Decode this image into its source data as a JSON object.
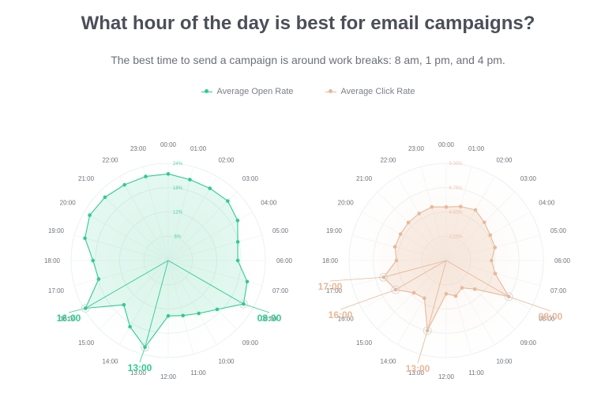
{
  "header": {
    "title": "What hour of the day is best for email campaigns?",
    "subtitle": "The best time to send a campaign is around work breaks: 8 am, 1 pm, and 4 pm."
  },
  "legend": [
    {
      "label": "Average Open Rate",
      "color": "#2ecc8f"
    },
    {
      "label": "Average Click Rate",
      "color": "#e8b898"
    }
  ],
  "chart_data": [
    {
      "type": "radar",
      "series_name": "Average Open Rate",
      "color": "#2ecc8f",
      "categories": [
        "00:00",
        "01:00",
        "02:00",
        "03:00",
        "04:00",
        "05:00",
        "06:00",
        "07:00",
        "08:00",
        "09:00",
        "10:00",
        "11:00",
        "12:00",
        "13:00",
        "14:00",
        "15:00",
        "16:00",
        "17:00",
        "18:00",
        "19:00",
        "20:00",
        "21:00",
        "22:00",
        "23:00"
      ],
      "values": [
        21.4,
        20.7,
        20.6,
        20.8,
        19.8,
        17.8,
        17.2,
        20.2,
        21.5,
        17.1,
        15.1,
        14.1,
        13.7,
        22.2,
        18.9,
        15.5,
        23.6,
        17.8,
        18.6,
        21.3,
        22.4,
        22.1,
        21.6,
        21.5
      ],
      "axis_ticks": [
        6,
        12,
        18,
        24
      ],
      "tick_labels": [
        "6%",
        "12%",
        "18%",
        "24%"
      ],
      "rmax": 24,
      "highlights": [
        {
          "label": "08:00",
          "index": 8
        },
        {
          "label": "13:00",
          "index": 13
        },
        {
          "label": "16:00",
          "index": 16
        }
      ]
    },
    {
      "type": "radar",
      "series_name": "Average Click Rate",
      "color": "#e8b898",
      "categories": [
        "00:00",
        "01:00",
        "02:00",
        "03:00",
        "04:00",
        "05:00",
        "06:00",
        "07:00",
        "08:00",
        "09:00",
        "10:00",
        "11:00",
        "12:00",
        "13:00",
        "14:00",
        "15:00",
        "16:00",
        "17:00",
        "18:00",
        "19:00",
        "20:00",
        "21:00",
        "22:00",
        "23:00"
      ],
      "values": [
        4.96,
        5.18,
        5.41,
        5.0,
        4.71,
        4.68,
        4.2,
        4.7,
        6.69,
        3.75,
        2.93,
        3.41,
        3.09,
        6.73,
        4.04,
        4.24,
        5.42,
        6.01,
        4.61,
        4.92,
        4.89,
        4.97,
        5.03,
        5.14
      ],
      "axis_ticks": [
        2.25,
        4.5,
        6.75,
        9
      ],
      "tick_labels": [
        "2.25%",
        "4.50%",
        "6.75%",
        "9.00%"
      ],
      "rmax": 9,
      "highlights": [
        {
          "label": "08:00",
          "index": 8
        },
        {
          "label": "13:00",
          "index": 13
        },
        {
          "label": "16:00",
          "index": 16
        },
        {
          "label": "17:00",
          "index": 17
        }
      ]
    }
  ]
}
